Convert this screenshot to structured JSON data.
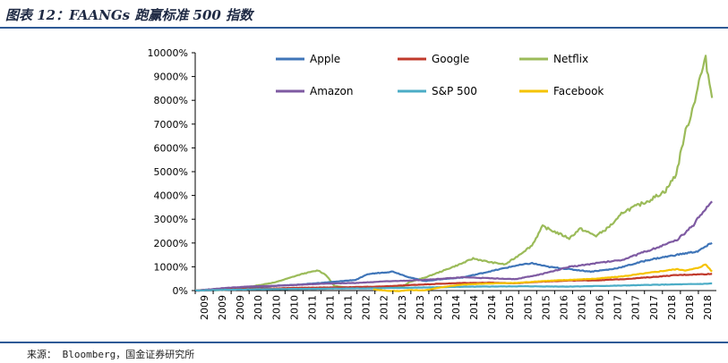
{
  "title": "图表 12：FAANGs 跑赢标准 500 指数",
  "source": "来源： Bloomberg，国金证券研究所",
  "chart_data": {
    "type": "line",
    "title": "图表 12：FAANGs 跑赢标准 500 指数",
    "xlabel": "",
    "ylabel": "",
    "ylim": [
      0,
      10000
    ],
    "yticks": [
      "0%",
      "1000%",
      "2000%",
      "3000%",
      "4000%",
      "5000%",
      "6000%",
      "7000%",
      "8000%",
      "9000%",
      "10000%"
    ],
    "xticks": [
      "2009",
      "2009",
      "2009",
      "2010",
      "2010",
      "2010",
      "2011",
      "2011",
      "2011",
      "2012",
      "2012",
      "2013",
      "2013",
      "2013",
      "2014",
      "2014",
      "2014",
      "2015",
      "2015",
      "2015",
      "2016",
      "2016",
      "2016",
      "2017",
      "2017",
      "2017",
      "2018",
      "2018",
      "2018"
    ],
    "legend_position": "top",
    "series": [
      {
        "name": "Apple",
        "color": "#3f75b8",
        "points": [
          [
            2009.0,
            0
          ],
          [
            2009.5,
            30
          ],
          [
            2010.0,
            100
          ],
          [
            2010.5,
            200
          ],
          [
            2011.0,
            260
          ],
          [
            2011.5,
            350
          ],
          [
            2012.0,
            450
          ],
          [
            2012.25,
            700
          ],
          [
            2012.7,
            800
          ],
          [
            2013.0,
            560
          ],
          [
            2013.3,
            400
          ],
          [
            2013.6,
            480
          ],
          [
            2014.0,
            550
          ],
          [
            2014.5,
            800
          ],
          [
            2015.0,
            1050
          ],
          [
            2015.3,
            1150
          ],
          [
            2015.6,
            1000
          ],
          [
            2016.0,
            900
          ],
          [
            2016.4,
            800
          ],
          [
            2016.8,
            900
          ],
          [
            2017.0,
            1000
          ],
          [
            2017.5,
            1300
          ],
          [
            2018.0,
            1500
          ],
          [
            2018.4,
            1650
          ],
          [
            2018.67,
            2000
          ]
        ]
      },
      {
        "name": "Google",
        "color": "#c0392b",
        "points": [
          [
            2009.0,
            0
          ],
          [
            2009.5,
            30
          ],
          [
            2010.0,
            80
          ],
          [
            2010.5,
            90
          ],
          [
            2011.0,
            120
          ],
          [
            2011.5,
            130
          ],
          [
            2012.0,
            150
          ],
          [
            2012.5,
            170
          ],
          [
            2013.0,
            230
          ],
          [
            2013.5,
            280
          ],
          [
            2014.0,
            320
          ],
          [
            2014.5,
            330
          ],
          [
            2015.0,
            310
          ],
          [
            2015.5,
            380
          ],
          [
            2016.0,
            420
          ],
          [
            2016.5,
            430
          ],
          [
            2017.0,
            480
          ],
          [
            2017.5,
            560
          ],
          [
            2018.0,
            650
          ],
          [
            2018.4,
            680
          ],
          [
            2018.67,
            700
          ]
        ]
      },
      {
        "name": "Netflix",
        "color": "#9bbb59",
        "points": [
          [
            2009.0,
            0
          ],
          [
            2009.5,
            20
          ],
          [
            2010.0,
            150
          ],
          [
            2010.5,
            350
          ],
          [
            2011.0,
            700
          ],
          [
            2011.3,
            850
          ],
          [
            2011.45,
            650
          ],
          [
            2011.6,
            200
          ],
          [
            2011.9,
            100
          ],
          [
            2012.0,
            120
          ],
          [
            2012.3,
            150
          ],
          [
            2012.6,
            130
          ],
          [
            2012.9,
            180
          ],
          [
            2013.0,
            350
          ],
          [
            2013.3,
            550
          ],
          [
            2013.6,
            800
          ],
          [
            2014.0,
            1150
          ],
          [
            2014.2,
            1350
          ],
          [
            2014.5,
            1200
          ],
          [
            2014.8,
            1100
          ],
          [
            2015.0,
            1400
          ],
          [
            2015.3,
            1900
          ],
          [
            2015.5,
            2700
          ],
          [
            2015.7,
            2500
          ],
          [
            2016.0,
            2200
          ],
          [
            2016.2,
            2600
          ],
          [
            2016.5,
            2300
          ],
          [
            2016.7,
            2600
          ],
          [
            2016.9,
            3000
          ],
          [
            2017.0,
            3300
          ],
          [
            2017.3,
            3600
          ],
          [
            2017.5,
            3800
          ],
          [
            2017.8,
            4200
          ],
          [
            2018.0,
            4900
          ],
          [
            2018.15,
            6500
          ],
          [
            2018.3,
            7600
          ],
          [
            2018.45,
            9000
          ],
          [
            2018.55,
            9700
          ],
          [
            2018.67,
            8100
          ]
        ]
      },
      {
        "name": "Amazon",
        "color": "#7e5aa2",
        "points": [
          [
            2009.0,
            0
          ],
          [
            2009.5,
            100
          ],
          [
            2010.0,
            170
          ],
          [
            2010.5,
            200
          ],
          [
            2011.0,
            250
          ],
          [
            2011.5,
            300
          ],
          [
            2012.0,
            320
          ],
          [
            2012.5,
            380
          ],
          [
            2013.0,
            420
          ],
          [
            2013.5,
            480
          ],
          [
            2014.0,
            560
          ],
          [
            2014.5,
            520
          ],
          [
            2015.0,
            480
          ],
          [
            2015.5,
            700
          ],
          [
            2016.0,
            1000
          ],
          [
            2016.5,
            1150
          ],
          [
            2017.0,
            1300
          ],
          [
            2017.5,
            1700
          ],
          [
            2018.0,
            2100
          ],
          [
            2018.3,
            2700
          ],
          [
            2018.5,
            3300
          ],
          [
            2018.67,
            3750
          ]
        ]
      },
      {
        "name": "S&P 500",
        "color": "#4bacc6",
        "points": [
          [
            2009.0,
            0
          ],
          [
            2009.5,
            30
          ],
          [
            2010.0,
            50
          ],
          [
            2010.5,
            60
          ],
          [
            2011.0,
            70
          ],
          [
            2011.5,
            80
          ],
          [
            2012.0,
            90
          ],
          [
            2012.5,
            100
          ],
          [
            2013.0,
            120
          ],
          [
            2013.5,
            140
          ],
          [
            2014.0,
            160
          ],
          [
            2014.5,
            170
          ],
          [
            2015.0,
            180
          ],
          [
            2015.5,
            175
          ],
          [
            2016.0,
            170
          ],
          [
            2016.5,
            190
          ],
          [
            2017.0,
            210
          ],
          [
            2017.5,
            240
          ],
          [
            2018.0,
            260
          ],
          [
            2018.5,
            280
          ],
          [
            2018.67,
            300
          ]
        ]
      },
      {
        "name": "Facebook",
        "color": "#f5c300",
        "points": [
          [
            2012.33,
            50
          ],
          [
            2012.6,
            -10
          ],
          [
            2012.8,
            -20
          ],
          [
            2013.0,
            20
          ],
          [
            2013.3,
            10
          ],
          [
            2013.5,
            100
          ],
          [
            2013.8,
            200
          ],
          [
            2014.0,
            250
          ],
          [
            2014.5,
            300
          ],
          [
            2015.0,
            320
          ],
          [
            2015.5,
            400
          ],
          [
            2016.0,
            450
          ],
          [
            2016.5,
            500
          ],
          [
            2017.0,
            600
          ],
          [
            2017.5,
            750
          ],
          [
            2018.0,
            900
          ],
          [
            2018.2,
            850
          ],
          [
            2018.4,
            950
          ],
          [
            2018.55,
            1100
          ],
          [
            2018.67,
            800
          ]
        ]
      }
    ]
  }
}
